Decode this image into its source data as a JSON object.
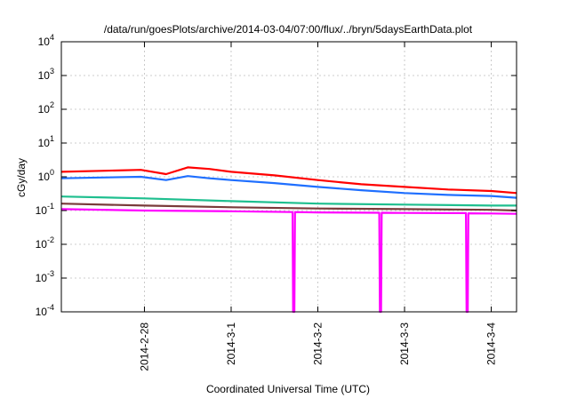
{
  "chart_data": {
    "type": "line",
    "title": "/data/run/goesPlots/archive/2014-03-04/07:00/flux/../bryn/5daysEarthData.plot",
    "xlabel": "Coordinated Universal Time (UTC)",
    "ylabel": "cGy/day",
    "yscale": "log",
    "ylim": [
      0.0001,
      10000
    ],
    "xlim": [
      "2014-02-27T01:00",
      "2014-03-04T07:00"
    ],
    "y_ticks": [
      {
        "value": 0.0001,
        "base": "10",
        "exp": "-4"
      },
      {
        "value": 0.001,
        "base": "10",
        "exp": "-3"
      },
      {
        "value": 0.01,
        "base": "10",
        "exp": "-2"
      },
      {
        "value": 0.1,
        "base": "10",
        "exp": "-1"
      },
      {
        "value": 1,
        "base": "10",
        "exp": "0"
      },
      {
        "value": 10,
        "base": "10",
        "exp": "1"
      },
      {
        "value": 100,
        "base": "10",
        "exp": "2"
      },
      {
        "value": 1000,
        "base": "10",
        "exp": "3"
      },
      {
        "value": 10000,
        "base": "10",
        "exp": "4"
      }
    ],
    "x_ticks": [
      {
        "value": "2014-02-28T00:00",
        "label": "2014-2-28"
      },
      {
        "value": "2014-03-01T00:00",
        "label": "2014-3-1"
      },
      {
        "value": "2014-03-02T00:00",
        "label": "2014-3-2"
      },
      {
        "value": "2014-03-03T00:00",
        "label": "2014-3-3"
      },
      {
        "value": "2014-03-04T00:00",
        "label": "2014-3-4"
      }
    ],
    "grid": true,
    "series": [
      {
        "color": "#ff0000",
        "x": [
          "2014-02-27T01:00",
          "2014-02-27T12:00",
          "2014-02-27T23:00",
          "2014-02-28T06:00",
          "2014-02-28T12:00",
          "2014-02-28T18:00",
          "2014-03-01T00:00",
          "2014-03-01T12:00",
          "2014-03-02T00:00",
          "2014-03-02T12:00",
          "2014-03-03T00:00",
          "2014-03-03T12:00",
          "2014-03-04T00:00",
          "2014-03-04T07:00"
        ],
        "values": [
          1.4,
          1.5,
          1.6,
          1.2,
          1.9,
          1.7,
          1.4,
          1.1,
          0.8,
          0.6,
          0.5,
          0.42,
          0.38,
          0.33
        ]
      },
      {
        "color": "#1f6fff",
        "x": [
          "2014-02-27T01:00",
          "2014-02-27T12:00",
          "2014-02-27T23:00",
          "2014-02-28T06:00",
          "2014-02-28T12:00",
          "2014-02-28T18:00",
          "2014-03-01T00:00",
          "2014-03-01T12:00",
          "2014-03-02T00:00",
          "2014-03-02T12:00",
          "2014-03-03T00:00",
          "2014-03-03T12:00",
          "2014-03-04T00:00",
          "2014-03-04T07:00"
        ],
        "values": [
          0.9,
          0.95,
          1.0,
          0.8,
          1.05,
          0.9,
          0.8,
          0.65,
          0.5,
          0.4,
          0.33,
          0.29,
          0.27,
          0.24
        ]
      },
      {
        "color": "#1fbf8f",
        "x": [
          "2014-02-27T01:00",
          "2014-02-28T00:00",
          "2014-03-01T00:00",
          "2014-03-02T00:00",
          "2014-03-03T00:00",
          "2014-03-04T00:00",
          "2014-03-04T07:00"
        ],
        "values": [
          0.26,
          0.23,
          0.19,
          0.16,
          0.15,
          0.14,
          0.14
        ]
      },
      {
        "color": "#7a3a3a",
        "x": [
          "2014-02-27T01:00",
          "2014-02-28T00:00",
          "2014-03-01T00:00",
          "2014-03-02T00:00",
          "2014-03-03T00:00",
          "2014-03-04T00:00",
          "2014-03-04T07:00"
        ],
        "values": [
          0.16,
          0.14,
          0.125,
          0.115,
          0.11,
          0.105,
          0.1
        ]
      },
      {
        "color": "#ff00ff",
        "x": [
          "2014-02-27T01:00",
          "2014-02-28T00:00",
          "2014-03-01T00:00",
          "2014-03-01T17:00",
          "2014-03-01T17:10",
          "2014-03-01T17:30",
          "2014-03-01T17:40",
          "2014-03-02T00:00",
          "2014-03-02T17:00",
          "2014-03-02T17:10",
          "2014-03-02T17:30",
          "2014-03-02T17:40",
          "2014-03-03T00:00",
          "2014-03-03T17:00",
          "2014-03-03T17:10",
          "2014-03-03T17:30",
          "2014-03-03T17:40",
          "2014-03-04T00:00",
          "2014-03-04T07:00"
        ],
        "values": [
          0.11,
          0.1,
          0.095,
          0.09,
          0.0001,
          0.0001,
          0.09,
          0.088,
          0.086,
          0.0001,
          0.0001,
          0.086,
          0.085,
          0.084,
          0.0001,
          0.0001,
          0.083,
          0.082,
          0.08
        ]
      }
    ]
  }
}
